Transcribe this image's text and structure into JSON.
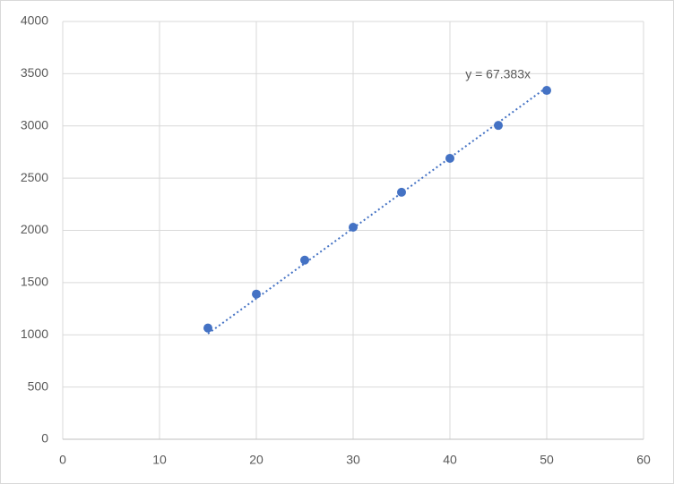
{
  "chart_data": {
    "type": "scatter",
    "series": [
      {
        "color": "#4472c4",
        "x": [
          15,
          20,
          25,
          30,
          35,
          40,
          45,
          50
        ],
        "values": [
          1065,
          1390,
          1715,
          2030,
          2365,
          2690,
          3005,
          3340
        ]
      }
    ],
    "trendline": {
      "slope": 67.383,
      "label": "y = 67.383x"
    },
    "xlim": [
      0,
      60
    ],
    "xticks": [
      0,
      10,
      20,
      30,
      40,
      50,
      60
    ],
    "ylim": [
      0,
      4000
    ],
    "yticks": [
      0,
      500,
      1000,
      1500,
      2000,
      2500,
      3000,
      3500,
      4000
    ],
    "grid": true
  }
}
